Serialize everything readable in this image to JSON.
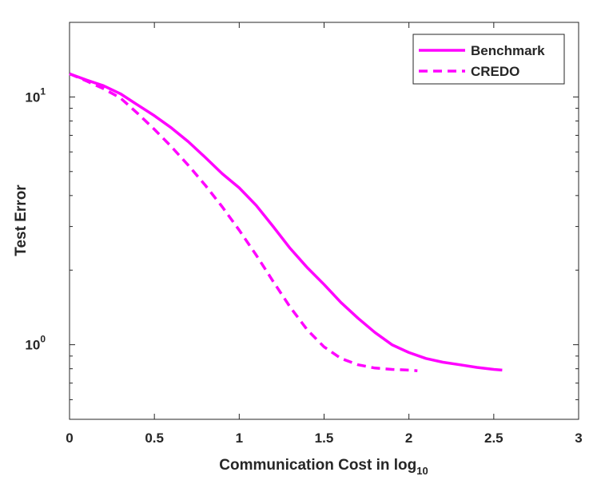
{
  "chart_data": {
    "type": "line",
    "title": "",
    "xlabel_main": "Communication Cost in log",
    "xlabel_sub": "10",
    "ylabel": "Test Error",
    "xlim": [
      0,
      3
    ],
    "ylim": [
      0.5,
      20
    ],
    "yscale": "log",
    "grid": false,
    "legend_position": "top-right",
    "x_ticks": [
      0,
      0.5,
      1,
      1.5,
      2,
      2.5,
      3
    ],
    "x_tick_labels": [
      "0",
      "0.5",
      "1",
      "1.5",
      "2",
      "2.5",
      "3"
    ],
    "y_major_ticks": [
      {
        "value": 1,
        "base": "10",
        "exp": "0"
      },
      {
        "value": 10,
        "base": "10",
        "exp": "1"
      }
    ],
    "series": [
      {
        "name": "Benchmark",
        "style": "solid",
        "color": "#ff00ff",
        "x": [
          0,
          0.1,
          0.2,
          0.3,
          0.4,
          0.5,
          0.6,
          0.7,
          0.8,
          0.9,
          1.0,
          1.1,
          1.2,
          1.3,
          1.4,
          1.5,
          1.6,
          1.7,
          1.8,
          1.9,
          2.0,
          2.1,
          2.2,
          2.3,
          2.4,
          2.5,
          2.55
        ],
        "values": [
          12.4,
          11.7,
          11.1,
          10.3,
          9.3,
          8.4,
          7.5,
          6.6,
          5.7,
          4.9,
          4.3,
          3.65,
          3.0,
          2.45,
          2.05,
          1.75,
          1.48,
          1.28,
          1.12,
          1.0,
          0.93,
          0.88,
          0.85,
          0.83,
          0.81,
          0.795,
          0.79
        ]
      },
      {
        "name": "CREDO",
        "style": "dashed",
        "color": "#ff00ff",
        "x": [
          0,
          0.1,
          0.2,
          0.3,
          0.4,
          0.5,
          0.6,
          0.7,
          0.8,
          0.9,
          1.0,
          1.1,
          1.2,
          1.3,
          1.4,
          1.5,
          1.6,
          1.7,
          1.8,
          1.9,
          2.0,
          2.05
        ],
        "values": [
          12.4,
          11.6,
          10.8,
          9.9,
          8.6,
          7.4,
          6.3,
          5.3,
          4.4,
          3.6,
          2.9,
          2.3,
          1.8,
          1.42,
          1.15,
          0.98,
          0.88,
          0.83,
          0.805,
          0.795,
          0.79,
          0.785
        ]
      }
    ]
  }
}
